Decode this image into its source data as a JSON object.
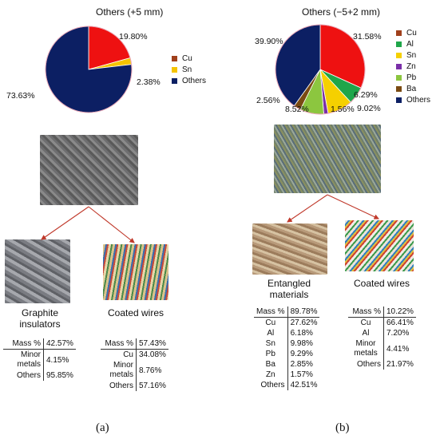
{
  "chart_data": [
    {
      "type": "pie",
      "title": "Others (+5 mm)",
      "slices": [
        {
          "name": "Cu",
          "value": 19.8,
          "label": "19.80%",
          "color": "#ee1111"
        },
        {
          "name": "Sn",
          "value": 2.38,
          "label": "2.38%",
          "color": "#f5c400"
        },
        {
          "name": "Others",
          "value": 73.63,
          "label": "73.63%",
          "color": "#0c1f63"
        }
      ],
      "legend": [
        "Cu",
        "Sn",
        "Others"
      ],
      "legend_colors": [
        "#a0401c",
        "#f5c400",
        "#0c1f63"
      ],
      "legend_position": "right"
    },
    {
      "type": "pie",
      "title": "Others (−5+2 mm)",
      "slices": [
        {
          "name": "Cu",
          "value": 31.58,
          "label": "31.58%",
          "color": "#ee1111"
        },
        {
          "name": "Al",
          "value": 6.29,
          "label": "6.29%",
          "color": "#1fa64a"
        },
        {
          "name": "Sn",
          "value": 9.02,
          "label": "9.02%",
          "color": "#f5d000"
        },
        {
          "name": "Zn",
          "value": 1.56,
          "label": "1.56%",
          "color": "#7a2fa8"
        },
        {
          "name": "Pb",
          "value": 8.52,
          "label": "8.52%",
          "color": "#8cc63f"
        },
        {
          "name": "Ba",
          "value": 2.56,
          "label": "2.56%",
          "color": "#7a4a12"
        },
        {
          "name": "Others",
          "value": 39.9,
          "label": "39.90%",
          "color": "#0c1f63"
        }
      ],
      "legend": [
        "Cu",
        "Al",
        "Sn",
        "Zn",
        "Pb",
        "Ba",
        "Others"
      ],
      "legend_colors": [
        "#a0401c",
        "#1fa64a",
        "#f5d000",
        "#7a2fa8",
        "#8cc63f",
        "#7a4a12",
        "#0c1f63"
      ],
      "legend_position": "right"
    },
    {
      "type": "table",
      "title": "Graphite insulators",
      "rows": [
        [
          "Mass %",
          "42.57%"
        ],
        [
          "Minor metals",
          "4.15%"
        ],
        [
          "Others",
          "95.85%"
        ]
      ]
    },
    {
      "type": "table",
      "title": "Coated wires",
      "rows": [
        [
          "Mass %",
          "57.43%"
        ],
        [
          "Cu",
          "34.08%"
        ],
        [
          "Minor metals",
          "8.76%"
        ],
        [
          "Others",
          "57.16%"
        ]
      ]
    },
    {
      "type": "table",
      "title": "Entangled materials",
      "rows": [
        [
          "Mass %",
          "89.78%"
        ],
        [
          "Cu",
          "27.62%"
        ],
        [
          "Al",
          "6.18%"
        ],
        [
          "Sn",
          "9.98%"
        ],
        [
          "Pb",
          "9.29%"
        ],
        [
          "Ba",
          "2.85%"
        ],
        [
          "Zn",
          "1.57%"
        ],
        [
          "Others",
          "42.51%"
        ]
      ]
    },
    {
      "type": "table",
      "title": "Coated wires",
      "rows": [
        [
          "Mass %",
          "10.22%"
        ],
        [
          "Cu",
          "66.41%"
        ],
        [
          "Al",
          "7.20%"
        ],
        [
          "Minor metals",
          "4.41%"
        ],
        [
          "Others",
          "21.97%"
        ]
      ]
    }
  ],
  "captions": {
    "a1_line1": "Graphite",
    "a1_line2": "insulators",
    "a2": "Coated wires",
    "b1_line1": "Entangled",
    "b1_line2": "materials",
    "b2": "Coated wires"
  },
  "panel_labels": {
    "a": "(a)",
    "b": "(b)"
  },
  "colors": {
    "arrow": "#c0392b",
    "pie_border": "#e8a4b4"
  }
}
